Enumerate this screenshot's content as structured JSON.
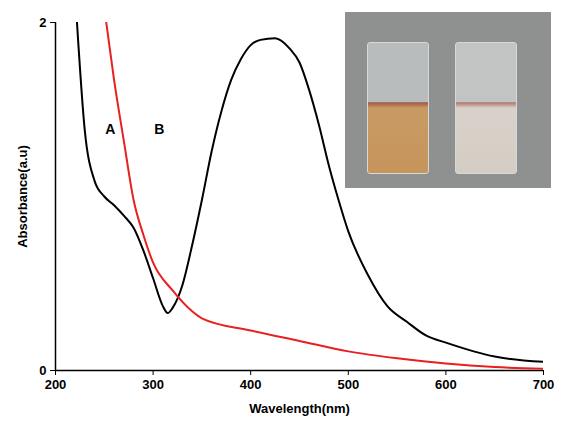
{
  "chart_data": {
    "type": "line",
    "xlabel": "Wavelength(nm)",
    "ylabel": "Absorbance(a.u)",
    "xlim": [
      200,
      700
    ],
    "xticks": [
      200,
      300,
      400,
      500,
      600,
      700
    ],
    "ylim": [
      0,
      2
    ],
    "yticks": [
      0,
      2
    ],
    "series": [
      {
        "name": "A",
        "color": "#000000",
        "x": [
          222,
          230,
          240,
          250,
          260,
          270,
          280,
          290,
          300,
          310,
          315,
          320,
          330,
          340,
          350,
          360,
          370,
          380,
          390,
          400,
          410,
          425,
          440,
          450,
          460,
          470,
          480,
          490,
          500,
          520,
          540,
          560,
          580,
          600,
          650,
          700
        ],
        "values": [
          2.0,
          1.38,
          1.09,
          1.0,
          0.95,
          0.89,
          0.82,
          0.69,
          0.53,
          0.37,
          0.33,
          0.36,
          0.49,
          0.72,
          0.98,
          1.26,
          1.49,
          1.67,
          1.79,
          1.87,
          1.9,
          1.91,
          1.85,
          1.77,
          1.61,
          1.41,
          1.18,
          0.98,
          0.8,
          0.55,
          0.37,
          0.28,
          0.2,
          0.16,
          0.08,
          0.05
        ]
      },
      {
        "name": "B",
        "color": "#e8201f",
        "x": [
          252,
          260,
          270,
          280,
          290,
          300,
          320,
          340,
          350,
          400,
          450,
          500,
          550,
          600,
          650,
          700
        ],
        "values": [
          2.0,
          1.67,
          1.32,
          0.98,
          0.78,
          0.62,
          0.46,
          0.34,
          0.3,
          0.23,
          0.17,
          0.11,
          0.07,
          0.04,
          0.02,
          0.01
        ]
      }
    ]
  }
}
